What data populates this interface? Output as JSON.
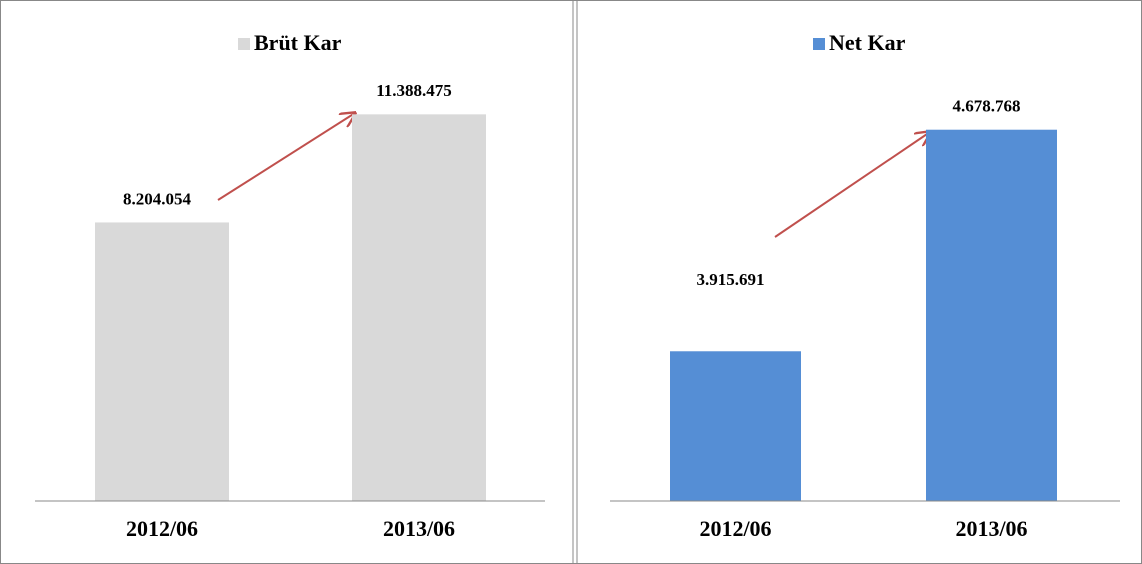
{
  "chart_data": [
    {
      "type": "bar",
      "categories": [
        "2012/06",
        "2013/06"
      ],
      "series": [
        {
          "name": "Brüt Kar",
          "color": "#d9d9d9",
          "values": [
            8204054,
            11388475
          ],
          "value_labels": [
            "8.204.054",
            "11.388.475"
          ]
        }
      ],
      "ylim": [
        0,
        12400000
      ]
    },
    {
      "type": "bar",
      "categories": [
        "2012/06",
        "2013/06"
      ],
      "series": [
        {
          "name": "Net Kar",
          "color": "#558ed5",
          "values": [
            3915691,
            4678768
          ],
          "value_labels": [
            "3.915.691",
            "4.678.768"
          ]
        }
      ],
      "ylim": [
        3400000,
        4850000
      ]
    }
  ]
}
